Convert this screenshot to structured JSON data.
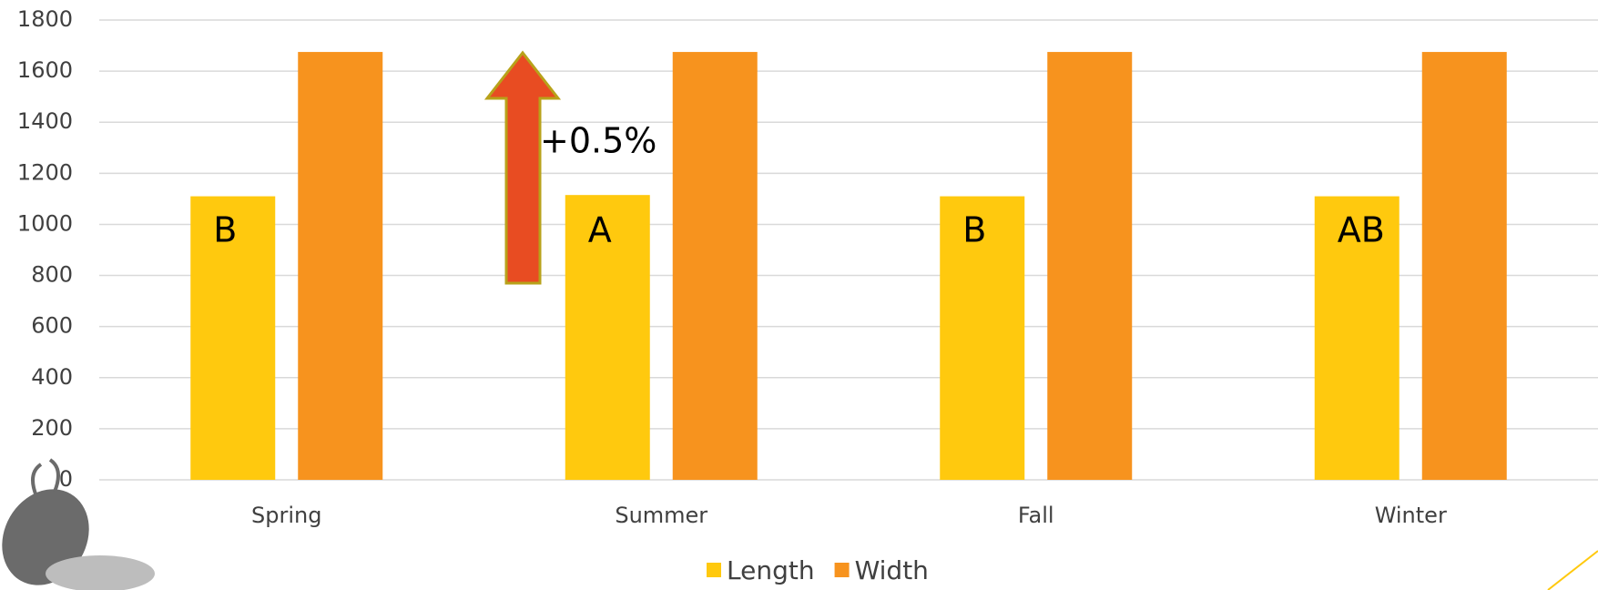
{
  "chart_data": {
    "type": "bar",
    "categories": [
      "Spring",
      "Summer",
      "Fall",
      "Winter"
    ],
    "series": [
      {
        "name": "Length",
        "color": "#ffc90e",
        "values": [
          1110,
          1115,
          1110,
          1110
        ]
      },
      {
        "name": "Width",
        "color": "#f7931e",
        "values": [
          1675,
          1675,
          1675,
          1675
        ]
      }
    ],
    "group_letters": [
      "B",
      "A",
      "B",
      "AB"
    ],
    "annotation": "+0.5%",
    "ylim": [
      0,
      1800
    ],
    "yticks": [
      0,
      200,
      400,
      600,
      800,
      1000,
      1200,
      1400,
      1600,
      1800
    ],
    "grid": true,
    "legend": "bottom"
  }
}
